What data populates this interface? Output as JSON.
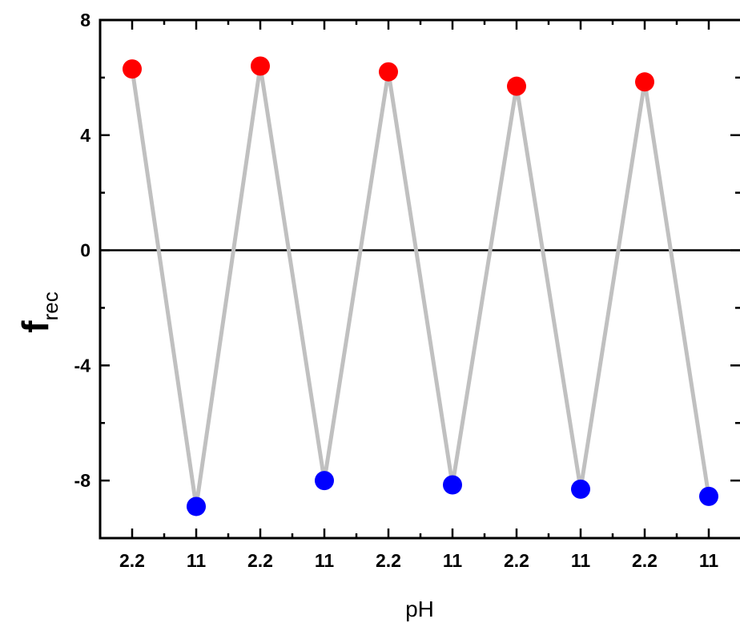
{
  "chart_data": {
    "type": "line",
    "xlabel": "pH",
    "ylabel": "f",
    "ylabel_sub": "rec",
    "categories": [
      "2.2",
      "11",
      "2.2",
      "11",
      "2.2",
      "11",
      "2.2",
      "11",
      "2.2",
      "11"
    ],
    "values": [
      6.3,
      -8.9,
      6.4,
      -8.0,
      6.2,
      -8.15,
      5.7,
      -8.3,
      5.85,
      -8.55
    ],
    "point_colors": [
      "#ff0000",
      "#0000ff",
      "#ff0000",
      "#0000ff",
      "#ff0000",
      "#0000ff",
      "#ff0000",
      "#0000ff",
      "#ff0000",
      "#0000ff"
    ],
    "line_color": "#c0c0c0",
    "zero_line": true,
    "ylim": [
      -10,
      8
    ],
    "yticks": [
      "8",
      "4",
      "0",
      "-4",
      "-8"
    ],
    "ytick_values": [
      8,
      4,
      0,
      -4,
      -8
    ],
    "grid": false
  }
}
